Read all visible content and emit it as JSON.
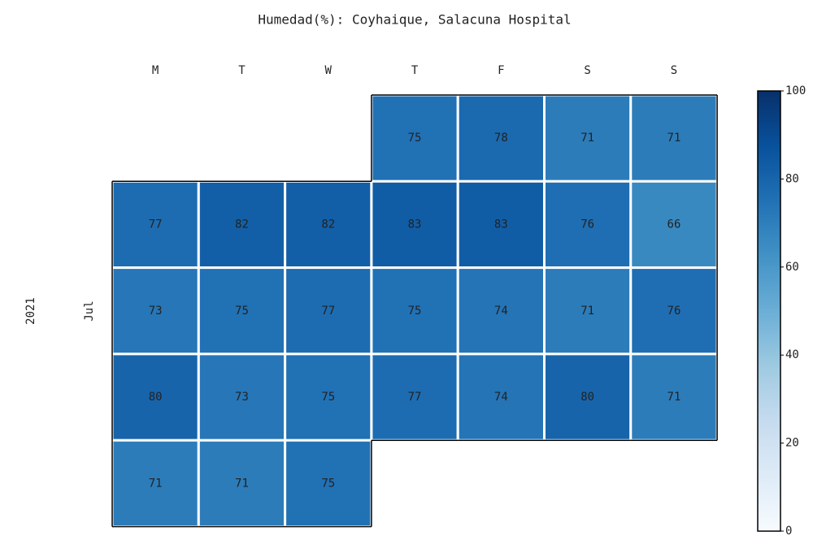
{
  "chart_data": {
    "type": "calendar_heatmap",
    "title": "Humedad(%): Coyhaique, Salacuna Hospital",
    "year_label": "2021",
    "month_label": "Jul",
    "weekdays": [
      "M",
      "T",
      "W",
      "T",
      "F",
      "S",
      "S"
    ],
    "values": [
      [
        null,
        null,
        null,
        75,
        78,
        71,
        71
      ],
      [
        77,
        82,
        82,
        83,
        83,
        76,
        66
      ],
      [
        73,
        75,
        77,
        75,
        74,
        71,
        76
      ],
      [
        80,
        73,
        75,
        77,
        74,
        80,
        71
      ],
      [
        71,
        71,
        75,
        null,
        null,
        null,
        null
      ]
    ],
    "colormap": [
      "#f7fbff",
      "#deebf7",
      "#c6dbef",
      "#9ecae1",
      "#6baed6",
      "#4292c6",
      "#2171b5",
      "#08519c",
      "#08306b"
    ],
    "clim": [
      0,
      100
    ],
    "cticks": [
      0,
      20,
      40,
      60,
      80,
      100
    ]
  }
}
